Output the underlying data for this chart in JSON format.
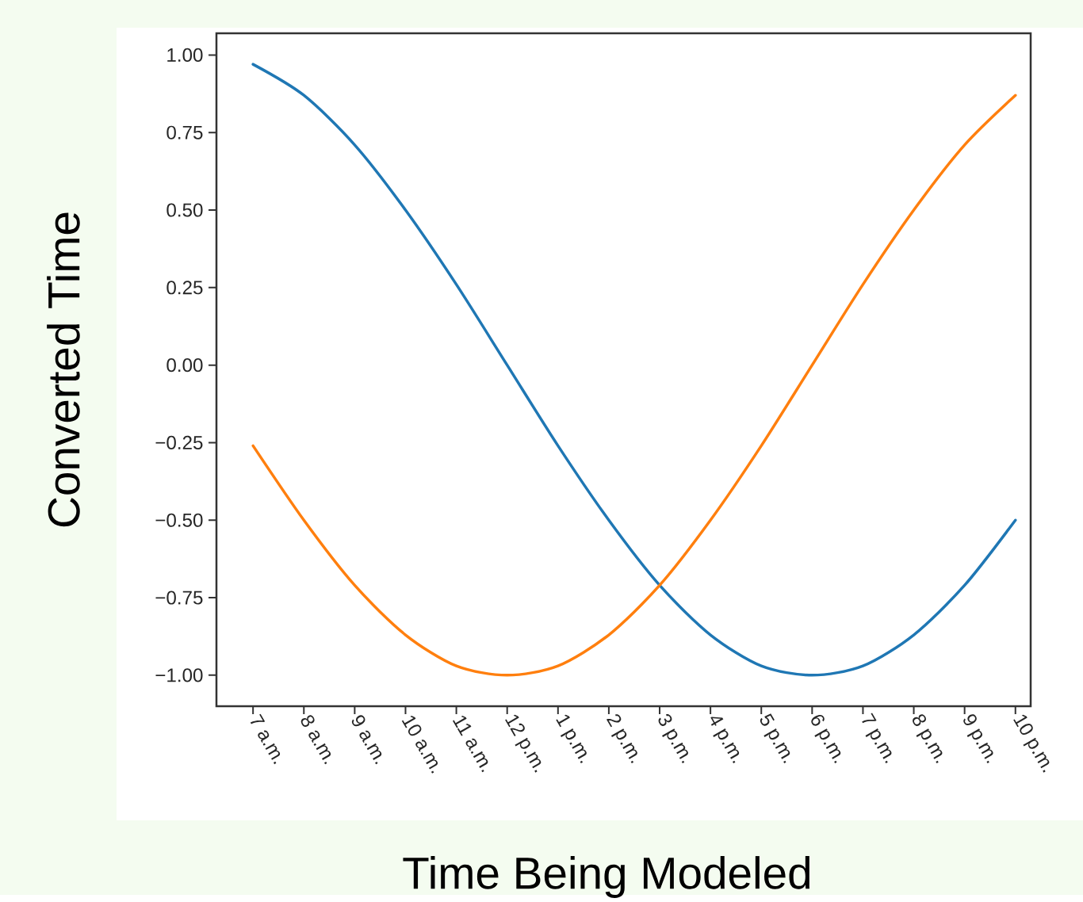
{
  "chart_data": {
    "type": "line",
    "xlabel": "Time Being Modeled",
    "ylabel": "Converted Time",
    "categories": [
      "7 a.m.",
      "8 a.m.",
      "9 a.m.",
      "10 a.m.",
      "11 a.m.",
      "12 p.m.",
      "1 p.m.",
      "2 p.m.",
      "3 p.m.",
      "4 p.m.",
      "5 p.m.",
      "6 p.m.",
      "7 p.m.",
      "8 p.m.",
      "9 p.m.",
      "10 p.m."
    ],
    "series": [
      {
        "color": "#1f77b4",
        "values": [
          0.97,
          0.87,
          0.71,
          0.5,
          0.26,
          0,
          -0.26,
          -0.5,
          -0.71,
          -0.87,
          -0.97,
          -1,
          -0.97,
          -0.87,
          -0.71,
          -0.5
        ]
      },
      {
        "color": "#ff7f0e",
        "values": [
          -0.26,
          -0.5,
          -0.71,
          -0.87,
          -0.97,
          -1,
          -0.97,
          -0.87,
          -0.71,
          -0.5,
          -0.26,
          0,
          0.26,
          0.5,
          0.71,
          0.87
        ]
      }
    ],
    "ylim": [
      -1.1,
      1.07
    ],
    "yticks": [
      {
        "value": -1,
        "label": "−1.00"
      },
      {
        "value": -0.75,
        "label": "−0.75"
      },
      {
        "value": -0.5,
        "label": "−0.50"
      },
      {
        "value": -0.25,
        "label": "−0.25"
      },
      {
        "value": 0,
        "label": "0.00"
      },
      {
        "value": 0.25,
        "label": "0.25"
      },
      {
        "value": 0.5,
        "label": "0.50"
      },
      {
        "value": 0.75,
        "label": "0.75"
      },
      {
        "value": 1,
        "label": "1.00"
      }
    ]
  }
}
